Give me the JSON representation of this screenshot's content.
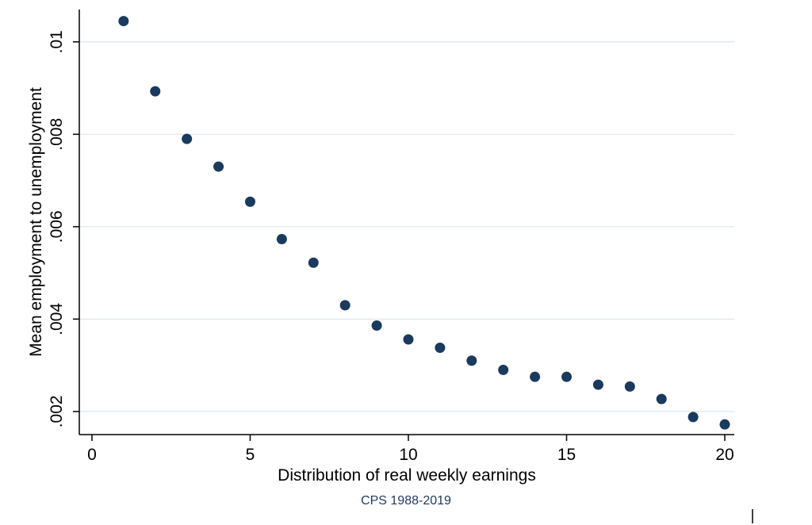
{
  "chart_data": {
    "type": "scatter",
    "title": "",
    "xlabel": "Distribution of real weekly earnings",
    "ylabel": "Mean employment to unemployment",
    "note": "CPS 1988-2019",
    "xlim": [
      -0.4,
      20.3
    ],
    "ylim": [
      0.0015,
      0.0107
    ],
    "xticks": [
      0,
      5,
      10,
      15,
      20
    ],
    "xtick_labels": [
      "0",
      "5",
      "10",
      "15",
      "20"
    ],
    "yticks": [
      0.002,
      0.004,
      0.006,
      0.008,
      0.01
    ],
    "ytick_labels": [
      ".002",
      ".004",
      ".006",
      ".008",
      ".01"
    ],
    "grid": true,
    "legend": "none",
    "marker_color": "#1a3a5e",
    "grid_color": "#dde7ef",
    "note_color": "#1f3a5f",
    "x": [
      1,
      2,
      3,
      4,
      5,
      6,
      7,
      8,
      9,
      10,
      11,
      12,
      13,
      14,
      15,
      16,
      17,
      18,
      19,
      20
    ],
    "y": [
      0.01045,
      0.00893,
      0.0079,
      0.0073,
      0.00654,
      0.00573,
      0.00522,
      0.0043,
      0.00386,
      0.00356,
      0.00338,
      0.0031,
      0.0029,
      0.00275,
      0.00275,
      0.00258,
      0.00254,
      0.00227,
      0.00188,
      0.00172
    ]
  }
}
